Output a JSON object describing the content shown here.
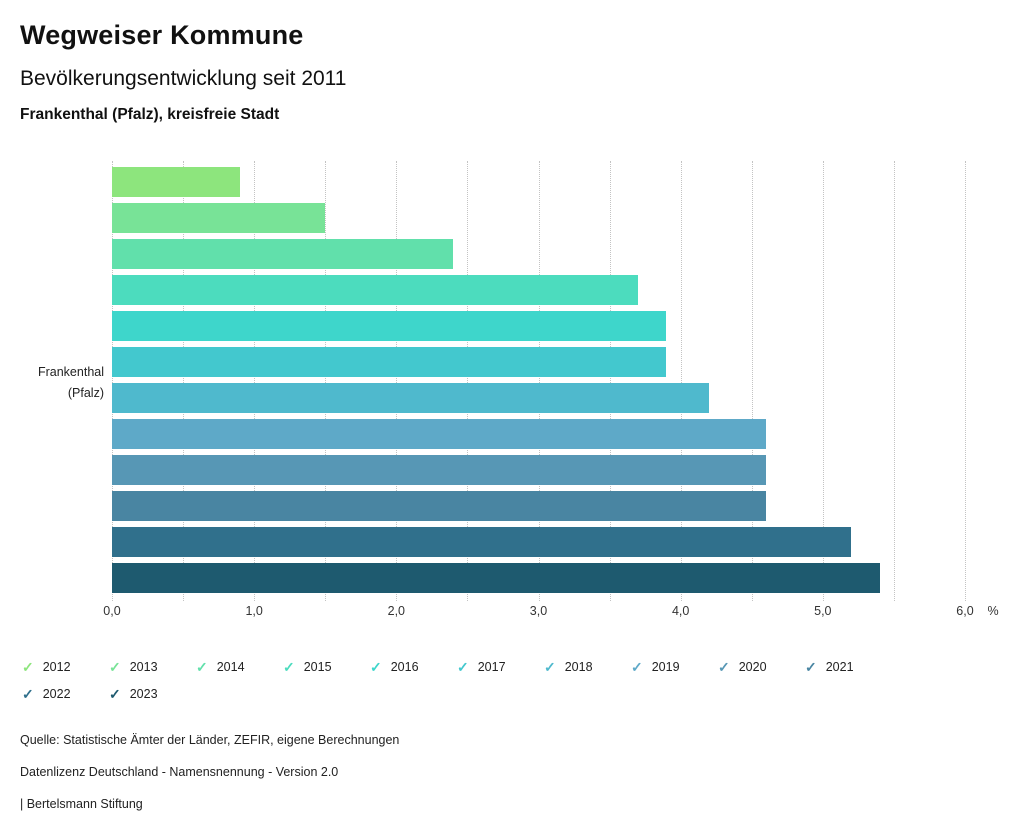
{
  "header": {
    "title": "Wegweiser Kommune",
    "subtitle": "Bevölkerungsentwicklung seit 2011",
    "region": "Frankenthal (Pfalz), kreisfreie Stadt"
  },
  "chart_data": {
    "type": "bar",
    "orientation": "horizontal",
    "group_label": "Frankenthal (Pfalz)",
    "categories": [
      "2012",
      "2013",
      "2014",
      "2015",
      "2016",
      "2017",
      "2018",
      "2019",
      "2020",
      "2021",
      "2022",
      "2023"
    ],
    "values": [
      0.9,
      1.5,
      2.4,
      3.7,
      3.9,
      3.9,
      4.2,
      4.6,
      4.6,
      4.6,
      5.2,
      5.4
    ],
    "colors": [
      "#8de57d",
      "#78e397",
      "#61e0ab",
      "#4cdcbe",
      "#3ed6cb",
      "#43c8ce",
      "#4fb9cd",
      "#5ea9c8",
      "#5797b5",
      "#4985a2",
      "#30708c",
      "#1e5a6f"
    ],
    "xlim": [
      0,
      6
    ],
    "grid_step": 0.5,
    "x_ticks": [
      "0,0",
      "1,0",
      "2,0",
      "3,0",
      "4,0",
      "5,0",
      "6,0"
    ],
    "x_unit": "%",
    "ylabel": "Frankenthal (Pfalz)",
    "grid": "dotted-vertical",
    "legend_position": "bottom"
  },
  "legend": {
    "items": [
      {
        "label": "2012",
        "color": "#8de57d"
      },
      {
        "label": "2013",
        "color": "#78e397"
      },
      {
        "label": "2014",
        "color": "#61e0ab"
      },
      {
        "label": "2015",
        "color": "#4cdcbe"
      },
      {
        "label": "2016",
        "color": "#3ed6cb"
      },
      {
        "label": "2017",
        "color": "#43c8ce"
      },
      {
        "label": "2018",
        "color": "#4fb9cd"
      },
      {
        "label": "2019",
        "color": "#5ea9c8"
      },
      {
        "label": "2020",
        "color": "#5797b5"
      },
      {
        "label": "2021",
        "color": "#4985a2"
      },
      {
        "label": "2022",
        "color": "#30708c"
      },
      {
        "label": "2023",
        "color": "#1e5a6f"
      }
    ],
    "check_glyph": "✓"
  },
  "footer": {
    "source": "Quelle: Statistische Ämter der Länder, ZEFIR, eigene Berechnungen",
    "license": "Datenlizenz Deutschland - Namensnennung - Version 2.0",
    "brand": "| Bertelsmann Stiftung"
  }
}
